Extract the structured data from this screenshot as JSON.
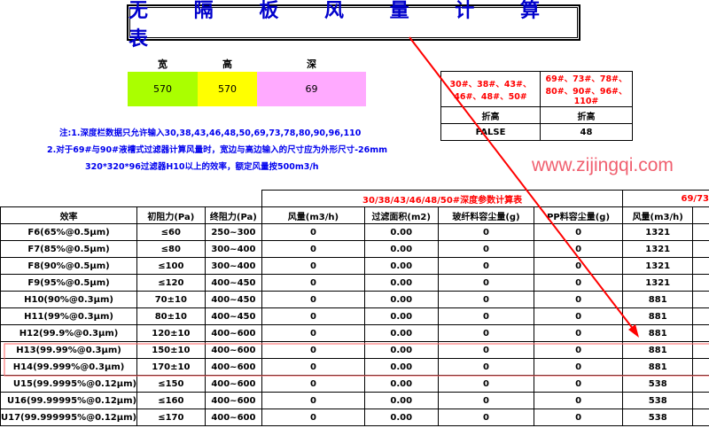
{
  "title": "无 隔 板 风 量 计 算 表",
  "dimensions": {
    "width_label": "宽",
    "height_label": "高",
    "depth_label": "深",
    "width": "570",
    "height": "570",
    "depth": "69",
    "colors": {
      "width": "#aaff00",
      "height": "#ffff00",
      "depth": "#ffaaff"
    }
  },
  "notes": [
    "注:1.深度栏数据只允许输入30,38,43,46,48,50,69,73,78,80,90,96,110",
    "2.对于69#与90#液槽式过滤器计算风量时，宽边与高边输入的尺寸应为外形尺寸-26mm",
    "320*320*96过滤器H10以上的效率，额定风量按500m3/h"
  ],
  "side_table": {
    "col1_header": "30#、38#、43#、46#、48#、50#",
    "col2_header": "69#、73#、78#、80#、90#、96#、110#",
    "row_label": "折高",
    "col1_value": "FALSE",
    "col2_value": "48"
  },
  "watermark": "www.zijingqi.com",
  "main_table": {
    "group1": "30/38/43/46/48/50#深度参数计算表",
    "group2": "69/73",
    "headers": [
      "效率",
      "初阻力(Pa)",
      "终阻力(Pa)",
      "风量(m3/h)",
      "过滤面积(m2)",
      "玻纤料容尘量(g)",
      "PP料容尘量(g)",
      "风量(m3/h)"
    ],
    "rows": [
      [
        "F6(65%@0.5μm)",
        "≤60",
        "250~300",
        "0",
        "0.00",
        "0",
        "0",
        "1321"
      ],
      [
        "F7(85%@0.5μm)",
        "≤80",
        "300~400",
        "0",
        "0.00",
        "0",
        "0",
        "1321"
      ],
      [
        "F8(90%@0.5μm)",
        "≤100",
        "300~400",
        "0",
        "0.00",
        "0",
        "0",
        "1321"
      ],
      [
        "F9(95%@0.5μm)",
        "≤120",
        "400~450",
        "0",
        "0.00",
        "0",
        "0",
        "1321"
      ],
      [
        "H10(90%@0.3μm)",
        "70±10",
        "400~450",
        "0",
        "0.00",
        "0",
        "0",
        "881"
      ],
      [
        "H11(99%@0.3μm)",
        "80±10",
        "400~450",
        "0",
        "0.00",
        "0",
        "0",
        "881"
      ],
      [
        "H12(99.9%@0.3μm)",
        "120±10",
        "400~600",
        "0",
        "0.00",
        "0",
        "0",
        "881"
      ],
      [
        "H13(99.99%@0.3μm)",
        "150±10",
        "400~600",
        "0",
        "0.00",
        "0",
        "0",
        "881"
      ],
      [
        "H14(99.999%@0.3μm)",
        "170±10",
        "400~600",
        "0",
        "0.00",
        "0",
        "0",
        "881"
      ],
      [
        "U15(99.9995%@0.12μm)",
        "≤150",
        "400~600",
        "0",
        "0.00",
        "0",
        "0",
        "538"
      ],
      [
        "U16(99.99995%@0.12μm)",
        "≤160",
        "400~600",
        "0",
        "0.00",
        "0",
        "0",
        "538"
      ],
      [
        "U17(99.999995%@0.12μm)",
        "≤170",
        "400~600",
        "0",
        "0.00",
        "0",
        "0",
        "538"
      ]
    ]
  },
  "annotation_color": "#ff0000"
}
